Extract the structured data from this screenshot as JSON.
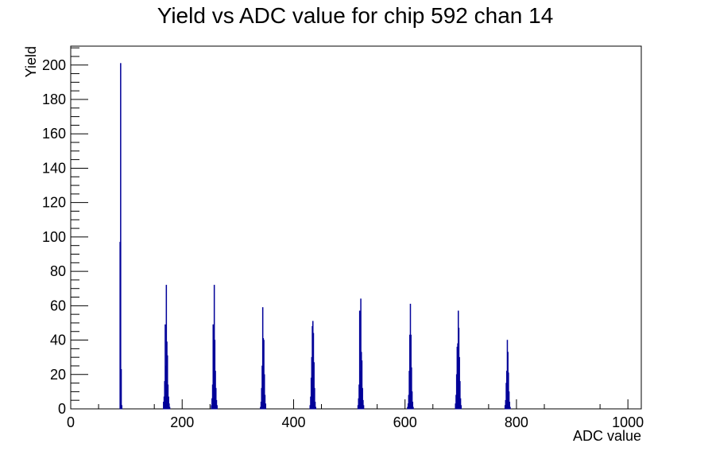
{
  "chart_data": {
    "type": "histogram",
    "title": "Yield vs ADC value for chip 592 chan 14",
    "xlabel": "ADC value",
    "ylabel": "Yield",
    "xlim": [
      0,
      1024
    ],
    "ylim": [
      0,
      211
    ],
    "x_ticks": [
      "0",
      "200",
      "400",
      "600",
      "800",
      "1000"
    ],
    "y_ticks": [
      "0",
      "20",
      "40",
      "60",
      "80",
      "100",
      "120",
      "140",
      "160",
      "180",
      "200"
    ],
    "grid": false,
    "series": [
      {
        "color": "#000099",
        "bin_width": 1,
        "bins": [
          [
            88,
            97
          ],
          [
            89,
            201
          ],
          [
            90,
            23
          ],
          [
            91,
            2
          ],
          [
            166,
            4
          ],
          [
            167,
            7
          ],
          [
            168,
            16
          ],
          [
            169,
            49
          ],
          [
            170,
            25
          ],
          [
            171,
            72
          ],
          [
            172,
            39
          ],
          [
            173,
            31
          ],
          [
            174,
            14
          ],
          [
            175,
            7
          ],
          [
            176,
            3
          ],
          [
            177,
            1
          ],
          [
            252,
            2
          ],
          [
            253,
            6
          ],
          [
            254,
            14
          ],
          [
            255,
            49
          ],
          [
            256,
            30
          ],
          [
            257,
            72
          ],
          [
            258,
            40
          ],
          [
            259,
            22
          ],
          [
            260,
            12
          ],
          [
            261,
            5
          ],
          [
            262,
            2
          ],
          [
            340,
            1
          ],
          [
            341,
            4
          ],
          [
            342,
            12
          ],
          [
            343,
            25
          ],
          [
            344,
            59
          ],
          [
            345,
            41
          ],
          [
            346,
            40
          ],
          [
            347,
            20
          ],
          [
            348,
            8
          ],
          [
            349,
            3
          ],
          [
            429,
            2
          ],
          [
            430,
            7
          ],
          [
            431,
            18
          ],
          [
            432,
            30
          ],
          [
            433,
            48
          ],
          [
            434,
            51
          ],
          [
            435,
            44
          ],
          [
            436,
            27
          ],
          [
            437,
            12
          ],
          [
            438,
            4
          ],
          [
            439,
            1
          ],
          [
            515,
            2
          ],
          [
            516,
            6
          ],
          [
            517,
            14
          ],
          [
            518,
            57
          ],
          [
            519,
            22
          ],
          [
            520,
            64
          ],
          [
            521,
            33
          ],
          [
            522,
            28
          ],
          [
            523,
            12
          ],
          [
            524,
            5
          ],
          [
            525,
            2
          ],
          [
            604,
            1
          ],
          [
            605,
            3
          ],
          [
            606,
            8
          ],
          [
            607,
            22
          ],
          [
            608,
            43
          ],
          [
            609,
            61
          ],
          [
            610,
            43
          ],
          [
            611,
            24
          ],
          [
            612,
            10
          ],
          [
            613,
            4
          ],
          [
            614,
            1
          ],
          [
            690,
            3
          ],
          [
            691,
            8
          ],
          [
            692,
            20
          ],
          [
            693,
            36
          ],
          [
            694,
            38
          ],
          [
            695,
            57
          ],
          [
            696,
            47
          ],
          [
            697,
            30
          ],
          [
            698,
            16
          ],
          [
            699,
            6
          ],
          [
            700,
            2
          ],
          [
            779,
            2
          ],
          [
            780,
            5
          ],
          [
            781,
            15
          ],
          [
            782,
            22
          ],
          [
            783,
            40
          ],
          [
            784,
            33
          ],
          [
            785,
            21
          ],
          [
            786,
            10
          ],
          [
            787,
            4
          ],
          [
            788,
            1
          ]
        ]
      }
    ]
  }
}
